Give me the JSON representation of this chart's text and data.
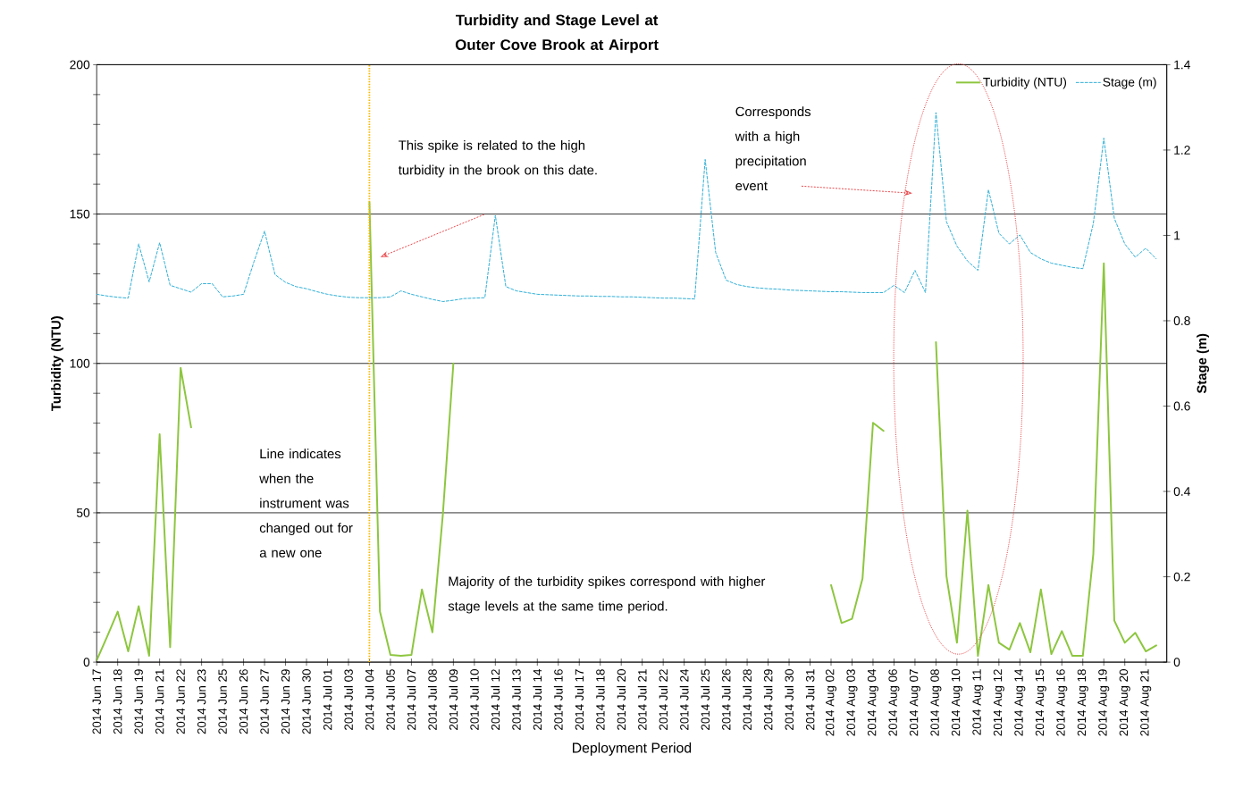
{
  "chart_data": {
    "type": "line",
    "title": "Turbidity and Stage Level at Outer Cove Brook at Airport",
    "xlabel": "Deployment Period",
    "ylabel": "Turbidity (NTU)",
    "y2label": "Stage (m)",
    "categories": [
      "2014 Jun 17",
      null,
      "2014 Jun 18",
      null,
      "2014 Jun 19",
      null,
      "2014 Jun 21",
      null,
      "2014 Jun 22",
      null,
      "2014 Jun 23",
      null,
      "2014 Jun 25",
      null,
      "2014 Jun 26",
      null,
      "2014 Jun 27",
      null,
      "2014 Jun 29",
      null,
      "2014 Jun 30",
      null,
      "2014 Jul 01",
      null,
      "2014 Jul 03",
      null,
      "2014 Jul 04",
      null,
      "2014 Jul 05",
      null,
      "2014 Jul 07",
      null,
      "2014 Jul 08",
      null,
      "2014 Jul 09",
      null,
      "2014 Jul 10",
      null,
      "2014 Jul 12",
      null,
      "2014 Jul 13",
      null,
      "2014 Jul 14",
      null,
      "2014 Jul 16",
      null,
      "2014 Jul 17",
      null,
      "2014 Jul 18",
      null,
      "2014 Jul 20",
      null,
      "2014 Jul 21",
      null,
      "2014 Jul 22",
      null,
      "2014 Jul 24",
      null,
      "2014 Jul 25",
      null,
      "2014 Jul 26",
      null,
      "2014 Jul 28",
      null,
      "2014 Jul 29",
      null,
      "2014 Jul 30",
      null,
      "2014 Jul 31",
      null,
      "2014 Aug 02",
      null,
      "2014 Aug 03",
      null,
      "2014 Aug 04",
      null,
      "2014 Aug 06",
      null,
      "2014 Aug 07",
      null,
      "2014 Aug 08",
      null,
      "2014 Aug 10",
      null,
      "2014 Aug 11",
      null,
      "2014 Aug 12",
      null,
      "2014 Aug 14",
      null,
      "2014 Aug 15",
      null,
      "2014 Aug 16",
      null,
      "2014 Aug 18",
      null,
      "2014 Aug 19",
      null,
      "2014 Aug 20",
      null,
      "2014 Aug 21",
      null
    ],
    "ylim": [
      0,
      200
    ],
    "yticks": [
      0,
      {
        "value": 10,
        "label": null
      },
      {
        "value": 20,
        "label": null
      },
      {
        "value": 30,
        "label": null
      },
      {
        "value": 40,
        "label": null
      },
      50,
      {
        "value": 60,
        "label": null
      },
      {
        "value": 70,
        "label": null
      },
      {
        "value": 80,
        "label": null
      },
      {
        "value": 90,
        "label": null
      },
      100,
      {
        "value": 110,
        "label": null
      },
      {
        "value": 120,
        "label": null
      },
      {
        "value": 130,
        "label": null
      },
      {
        "value": 140,
        "label": null
      },
      150,
      {
        "value": 160,
        "label": null
      },
      {
        "value": 170,
        "label": null
      },
      {
        "value": 180,
        "label": null
      },
      {
        "value": 190,
        "label": null
      },
      200
    ],
    "y2lim": [
      0,
      1.4
    ],
    "y2ticks": [
      0,
      0.2,
      0.4,
      0.6,
      0.8,
      1,
      1.2,
      1.4
    ],
    "grid": "y",
    "legend": "top right",
    "series": [
      {
        "name": "Turbidity (NTU)",
        "color": "#8dc63f",
        "line_style": "solid",
        "values": [
          0.6,
          8.6,
          16.9,
          3.6,
          18.7,
          2.1,
          76.3,
          5.0,
          98.5,
          78.6,
          null,
          null,
          null,
          null,
          null,
          null,
          null,
          null,
          null,
          null,
          null,
          null,
          null,
          null,
          null,
          null,
          154.0,
          16.9,
          2.4,
          2.1,
          2.4,
          24.3,
          10.0,
          49.6,
          100.0,
          null,
          null,
          null,
          null,
          null,
          null,
          null,
          null,
          null,
          null,
          null,
          null,
          null,
          null,
          null,
          null,
          null,
          null,
          null,
          null,
          null,
          null,
          null,
          null,
          null,
          null,
          null,
          null,
          null,
          null,
          null,
          null,
          null,
          null,
          null,
          25.8,
          13.1,
          14.5,
          28.0,
          80.1,
          77.4,
          null,
          null,
          null,
          null,
          107.1,
          28.8,
          6.5,
          50.7,
          2.1,
          25.8,
          6.5,
          4.2,
          13.1,
          3.3,
          24.3,
          2.7,
          10.4,
          2.1,
          2.1,
          36.2,
          133.5,
          13.9,
          6.5,
          9.8,
          3.6,
          5.6
        ]
      },
      {
        "name": "Stage (m)",
        "color": "#2eaed6",
        "line_style": "dashed",
        "axis": "y2",
        "values": [
          0.862,
          0.858,
          0.855,
          0.853,
          0.98,
          0.891,
          0.983,
          0.883,
          0.875,
          0.867,
          0.887,
          0.887,
          0.856,
          0.858,
          0.862,
          0.939,
          1.01,
          0.908,
          0.89,
          0.88,
          0.875,
          0.868,
          0.862,
          0.858,
          0.855,
          0.854,
          0.854,
          0.854,
          0.856,
          0.87,
          0.862,
          0.856,
          0.85,
          0.845,
          0.848,
          0.852,
          0.853,
          0.854,
          1.047,
          0.88,
          0.87,
          0.866,
          0.862,
          0.861,
          0.86,
          0.859,
          0.858,
          0.858,
          0.857,
          0.857,
          0.856,
          0.856,
          0.855,
          0.854,
          0.853,
          0.853,
          0.852,
          0.851,
          1.178,
          0.96,
          0.895,
          0.885,
          0.88,
          0.877,
          0.875,
          0.874,
          0.872,
          0.871,
          0.87,
          0.869,
          0.868,
          0.868,
          0.867,
          0.866,
          0.866,
          0.866,
          0.883,
          0.866,
          0.918,
          0.866,
          1.288,
          1.032,
          0.975,
          0.94,
          0.918,
          1.107,
          1.005,
          0.98,
          1.001,
          0.96,
          0.945,
          0.935,
          0.93,
          0.925,
          0.922,
          1.028,
          1.228,
          1.04,
          0.98,
          0.949,
          0.97,
          0.945
        ]
      }
    ],
    "ref_lines": [
      {
        "axis": "x",
        "value": "2014 Jul 04",
        "label": "Line indicates when the instrument was changed out for a new one",
        "color": "#f5b800",
        "line_style": "dotted"
      }
    ],
    "annotations": [
      "This spike is related to the high turbidity in the brook on this date.",
      "Corresponds with a high precipitation event",
      "Majority of the turbidity spikes correspond with higher stage levels at the same time period."
    ]
  }
}
